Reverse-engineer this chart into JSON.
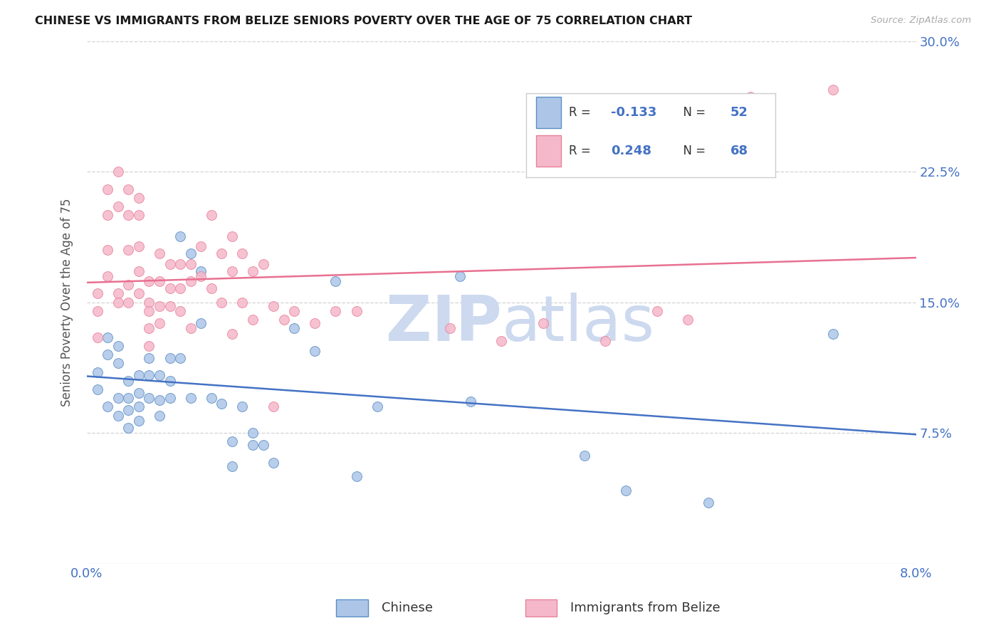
{
  "title": "CHINESE VS IMMIGRANTS FROM BELIZE SENIORS POVERTY OVER THE AGE OF 75 CORRELATION CHART",
  "source": "Source: ZipAtlas.com",
  "ylabel": "Seniors Poverty Over the Age of 75",
  "legend_label1": "Chinese",
  "legend_label2": "Immigrants from Belize",
  "R1": -0.133,
  "N1": 52,
  "R2": 0.248,
  "N2": 68,
  "color_blue_fill": "#adc6e8",
  "color_pink_fill": "#f5b8cb",
  "color_blue_edge": "#5b8ec4",
  "color_pink_edge": "#e8829a",
  "color_blue_line": "#4472c4",
  "color_pink_line": "#e87090",
  "color_blue_text": "#4472c4",
  "watermark_color": "#ccd9ee",
  "background_color": "#ffffff",
  "grid_color": "#c8c8c8",
  "xlim": [
    0.0,
    0.08
  ],
  "ylim": [
    0.0,
    0.3
  ],
  "chinese_x": [
    0.001,
    0.001,
    0.002,
    0.002,
    0.002,
    0.003,
    0.003,
    0.003,
    0.003,
    0.004,
    0.004,
    0.004,
    0.004,
    0.005,
    0.005,
    0.005,
    0.005,
    0.006,
    0.006,
    0.006,
    0.007,
    0.007,
    0.007,
    0.008,
    0.008,
    0.008,
    0.009,
    0.009,
    0.01,
    0.01,
    0.011,
    0.011,
    0.012,
    0.013,
    0.014,
    0.014,
    0.015,
    0.016,
    0.016,
    0.017,
    0.018,
    0.02,
    0.022,
    0.024,
    0.026,
    0.028,
    0.036,
    0.037,
    0.048,
    0.052,
    0.06,
    0.072
  ],
  "chinese_y": [
    0.11,
    0.1,
    0.13,
    0.12,
    0.09,
    0.125,
    0.115,
    0.095,
    0.085,
    0.105,
    0.095,
    0.088,
    0.078,
    0.108,
    0.098,
    0.09,
    0.082,
    0.118,
    0.108,
    0.095,
    0.108,
    0.094,
    0.085,
    0.118,
    0.105,
    0.095,
    0.118,
    0.188,
    0.178,
    0.095,
    0.168,
    0.138,
    0.095,
    0.092,
    0.07,
    0.056,
    0.09,
    0.075,
    0.068,
    0.068,
    0.058,
    0.135,
    0.122,
    0.162,
    0.05,
    0.09,
    0.165,
    0.093,
    0.062,
    0.042,
    0.035,
    0.132
  ],
  "belize_x": [
    0.001,
    0.001,
    0.001,
    0.002,
    0.002,
    0.002,
    0.002,
    0.003,
    0.003,
    0.003,
    0.003,
    0.004,
    0.004,
    0.004,
    0.004,
    0.004,
    0.005,
    0.005,
    0.005,
    0.005,
    0.005,
    0.006,
    0.006,
    0.006,
    0.006,
    0.006,
    0.007,
    0.007,
    0.007,
    0.007,
    0.008,
    0.008,
    0.008,
    0.009,
    0.009,
    0.009,
    0.01,
    0.01,
    0.01,
    0.011,
    0.011,
    0.012,
    0.012,
    0.013,
    0.013,
    0.014,
    0.014,
    0.014,
    0.015,
    0.015,
    0.016,
    0.016,
    0.017,
    0.018,
    0.018,
    0.019,
    0.02,
    0.022,
    0.024,
    0.026,
    0.035,
    0.04,
    0.044,
    0.05,
    0.055,
    0.058,
    0.064,
    0.072
  ],
  "belize_y": [
    0.155,
    0.145,
    0.13,
    0.215,
    0.2,
    0.18,
    0.165,
    0.225,
    0.205,
    0.155,
    0.15,
    0.215,
    0.2,
    0.18,
    0.16,
    0.15,
    0.21,
    0.2,
    0.182,
    0.168,
    0.155,
    0.162,
    0.15,
    0.145,
    0.135,
    0.125,
    0.178,
    0.162,
    0.148,
    0.138,
    0.172,
    0.158,
    0.148,
    0.172,
    0.158,
    0.145,
    0.172,
    0.162,
    0.135,
    0.182,
    0.165,
    0.2,
    0.158,
    0.178,
    0.15,
    0.188,
    0.168,
    0.132,
    0.178,
    0.15,
    0.168,
    0.14,
    0.172,
    0.148,
    0.09,
    0.14,
    0.145,
    0.138,
    0.145,
    0.145,
    0.135,
    0.128,
    0.138,
    0.128,
    0.145,
    0.14,
    0.268,
    0.272
  ]
}
